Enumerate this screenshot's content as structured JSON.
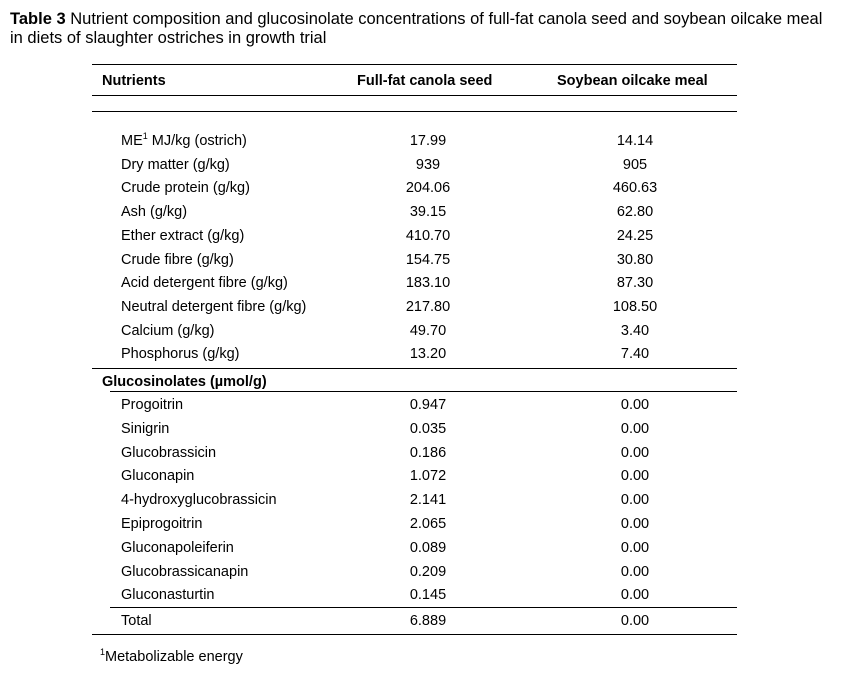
{
  "caption": {
    "label": "Table 3",
    "text": "Nutrient composition and glucosinolate concentrations of full-fat canola seed and soybean oilcake meal in diets of slaughter ostriches in growth trial"
  },
  "headers": [
    "Nutrients",
    "Full-fat canola seed",
    "Soybean oilcake meal"
  ],
  "nutrients": [
    {
      "name": "ME",
      "sup": "1",
      "name_suffix": " MJ/kg (ostrich)",
      "canola": "17.99",
      "soybean": "14.14"
    },
    {
      "name": "Dry matter (g/kg)",
      "canola": "939",
      "soybean": "905"
    },
    {
      "name": "Crude protein (g/kg)",
      "canola": "204.06",
      "soybean": "460.63"
    },
    {
      "name": "Ash (g/kg)",
      "canola": "39.15",
      "soybean": "62.80"
    },
    {
      "name": "Ether extract (g/kg)",
      "canola": "410.70",
      "soybean": "24.25"
    },
    {
      "name": "Crude fibre (g/kg)",
      "canola": "154.75",
      "soybean": "30.80"
    },
    {
      "name": "Acid detergent fibre (g/kg)",
      "canola": "183.10",
      "soybean": "87.30"
    },
    {
      "name": "Neutral detergent fibre (g/kg)",
      "canola": "217.80",
      "soybean": "108.50"
    },
    {
      "name": "Calcium (g/kg)",
      "canola": "49.70",
      "soybean": "3.40"
    },
    {
      "name": "Phosphorus (g/kg)",
      "canola": "13.20",
      "soybean": "7.40"
    }
  ],
  "glucosinolates_header": "Glucosinolates (µmol/g)",
  "glucosinolates": [
    {
      "name": "Progoitrin",
      "canola": "0.947",
      "soybean": "0.00"
    },
    {
      "name": "Sinigrin",
      "canola": "0.035",
      "soybean": "0.00"
    },
    {
      "name": "Glucobrassicin",
      "canola": "0.186",
      "soybean": "0.00"
    },
    {
      "name": "Gluconapin",
      "canola": "1.072",
      "soybean": "0.00"
    },
    {
      "name": "4-hydroxyglucobrassicin",
      "canola": "2.141",
      "soybean": "0.00"
    },
    {
      "name": "Epiprogoitrin",
      "canola": "2.065",
      "soybean": "0.00"
    },
    {
      "name": "Gluconapoleiferin",
      "canola": "0.089",
      "soybean": "0.00"
    },
    {
      "name": "Glucobrassicanapin",
      "canola": "0.209",
      "soybean": "0.00"
    },
    {
      "name": "Gluconasturtin",
      "canola": "0.145",
      "soybean": "0.00"
    }
  ],
  "total": {
    "name": "Total",
    "canola": "6.889",
    "soybean": "0.00"
  },
  "footnote": {
    "sup": "1",
    "text": "Metabolizable energy"
  }
}
